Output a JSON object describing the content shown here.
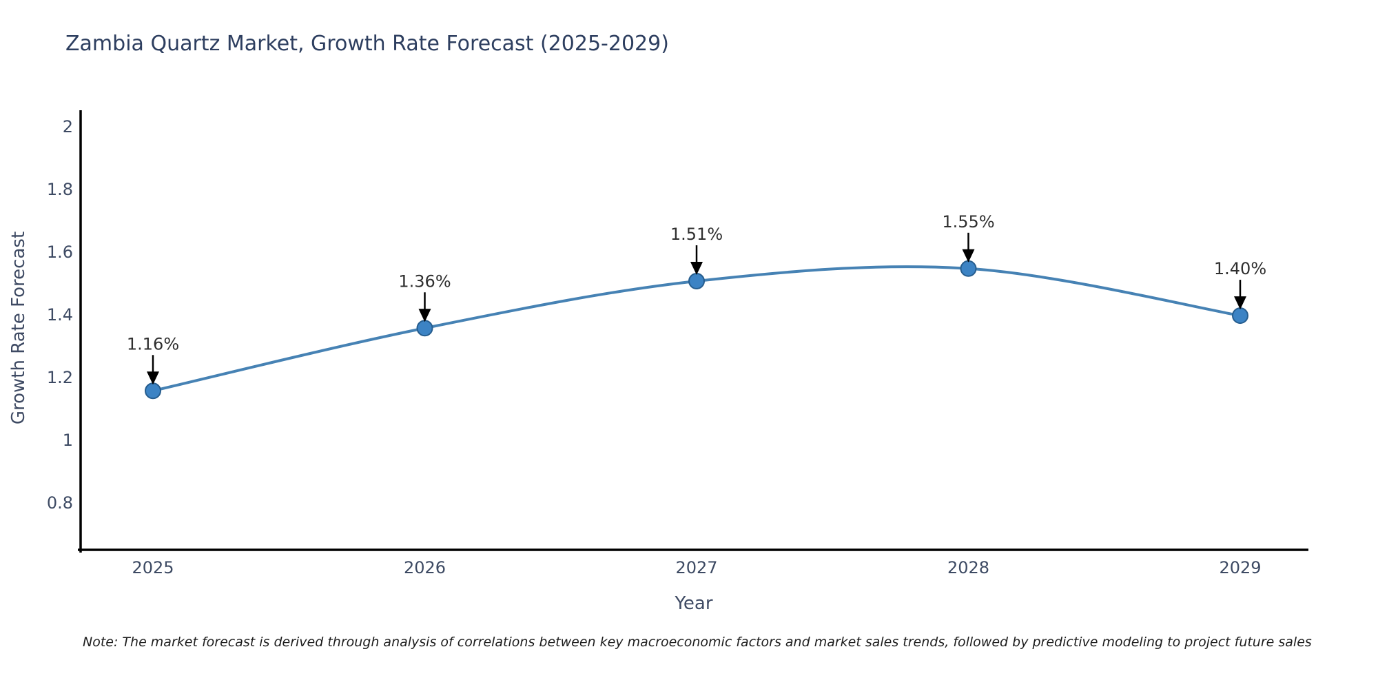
{
  "chart_data": {
    "type": "line",
    "title": "Zambia Quartz Market, Growth Rate Forecast (2025-2029)",
    "xlabel": "Year",
    "ylabel": "Growth Rate Forecast",
    "categories": [
      "2025",
      "2026",
      "2027",
      "2028",
      "2029"
    ],
    "series": [
      {
        "name": "Growth Rate Forecast",
        "values": [
          1.16,
          1.36,
          1.51,
          1.55,
          1.4
        ],
        "point_labels": [
          "1.16%",
          "1.36%",
          "1.51%",
          "1.55%",
          "1.40%"
        ]
      }
    ],
    "ytick_labels": [
      "2",
      "1.8",
      "1.6",
      "1.4",
      "1.2",
      "1",
      "0.8"
    ],
    "yticks": [
      2,
      1.8,
      1.6,
      1.4,
      1.2,
      1,
      0.8
    ],
    "ylim": [
      0.653,
      2.055
    ],
    "grid": false,
    "legend_position": "none",
    "line_style": "spline",
    "colors": {
      "line": "#4682b4",
      "marker_fill": "#3c83c4",
      "marker_edge": "#265d8e",
      "axis": "#000000",
      "tick_label": "#3d4a63",
      "annotation_text": "#2f2f2f",
      "annotation_arrow": "#000000",
      "title": "#2d3e5f"
    }
  },
  "note": {
    "text": "Note: The market forecast is derived through analysis of correlations between key macroeconomic factors and market sales trends, followed by predictive modeling to project future sales"
  }
}
